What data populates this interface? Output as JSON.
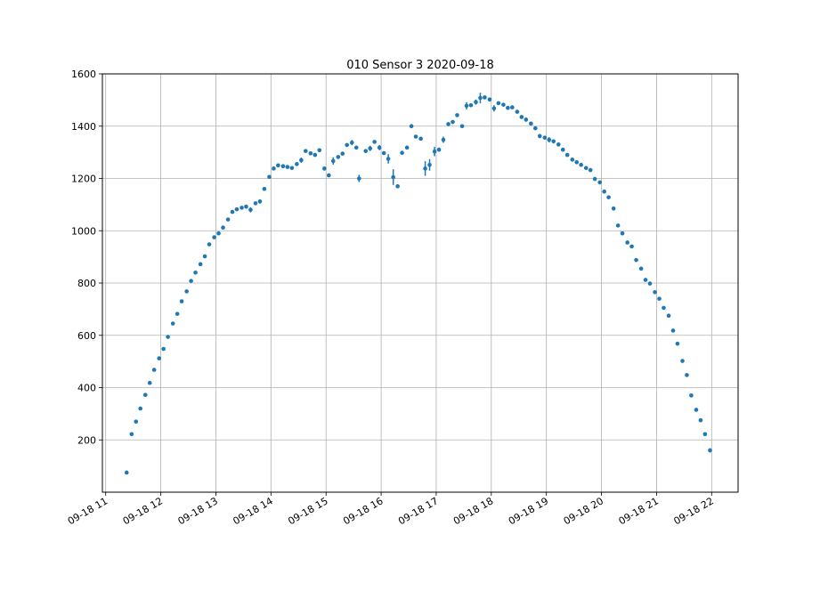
{
  "chart_data": {
    "type": "scatter",
    "title": "010 Sensor 3 2020-09-18",
    "xlabel": "",
    "ylabel": "",
    "x_unit": "hours (time of day, 2020-09-18)",
    "xlim": [
      10.94,
      22.48
    ],
    "ylim": [
      0,
      1600
    ],
    "grid": true,
    "color": "#1f77b4",
    "x_ticks": [
      {
        "value": 11,
        "label": "09-18 11"
      },
      {
        "value": 12,
        "label": "09-18 12"
      },
      {
        "value": 13,
        "label": "09-18 13"
      },
      {
        "value": 14,
        "label": "09-18 14"
      },
      {
        "value": 15,
        "label": "09-18 15"
      },
      {
        "value": 16,
        "label": "09-18 16"
      },
      {
        "value": 17,
        "label": "09-18 17"
      },
      {
        "value": 18,
        "label": "09-18 18"
      },
      {
        "value": 19,
        "label": "09-18 19"
      },
      {
        "value": 20,
        "label": "09-18 20"
      },
      {
        "value": 21,
        "label": "09-18 21"
      },
      {
        "value": 22,
        "label": "09-18 22"
      }
    ],
    "y_ticks": [
      {
        "value": 200,
        "label": "200"
      },
      {
        "value": 400,
        "label": "400"
      },
      {
        "value": 600,
        "label": "600"
      },
      {
        "value": 800,
        "label": "800"
      },
      {
        "value": 1000,
        "label": "1000"
      },
      {
        "value": 1200,
        "label": "1200"
      },
      {
        "value": 1400,
        "label": "1400"
      },
      {
        "value": 1600,
        "label": "1600"
      }
    ],
    "points": [
      [
        11.38,
        75,
        2
      ],
      [
        11.47,
        222,
        2
      ],
      [
        11.55,
        270,
        3
      ],
      [
        11.63,
        320,
        3
      ],
      [
        11.72,
        372,
        3
      ],
      [
        11.8,
        418,
        3
      ],
      [
        11.88,
        468,
        3
      ],
      [
        11.97,
        512,
        3
      ],
      [
        12.05,
        548,
        3
      ],
      [
        12.13,
        594,
        3
      ],
      [
        12.22,
        645,
        3
      ],
      [
        12.3,
        682,
        5
      ],
      [
        12.38,
        730,
        3
      ],
      [
        12.47,
        768,
        3
      ],
      [
        12.55,
        808,
        3
      ],
      [
        12.63,
        840,
        3
      ],
      [
        12.72,
        872,
        4
      ],
      [
        12.8,
        902,
        3
      ],
      [
        12.88,
        948,
        4
      ],
      [
        12.97,
        975,
        4
      ],
      [
        13.05,
        990,
        3
      ],
      [
        13.13,
        1012,
        3
      ],
      [
        13.22,
        1043,
        3
      ],
      [
        13.3,
        1072,
        4
      ],
      [
        13.38,
        1082,
        3
      ],
      [
        13.47,
        1088,
        3
      ],
      [
        13.55,
        1092,
        3
      ],
      [
        13.63,
        1080,
        10
      ],
      [
        13.72,
        1105,
        4
      ],
      [
        13.8,
        1112,
        8
      ],
      [
        13.88,
        1160,
        4
      ],
      [
        13.97,
        1206,
        6
      ],
      [
        14.05,
        1238,
        4
      ],
      [
        14.13,
        1250,
        5
      ],
      [
        14.22,
        1247,
        4
      ],
      [
        14.3,
        1244,
        3
      ],
      [
        14.38,
        1240,
        3
      ],
      [
        14.47,
        1255,
        6
      ],
      [
        14.55,
        1270,
        10
      ],
      [
        14.63,
        1305,
        4
      ],
      [
        14.72,
        1296,
        4
      ],
      [
        14.8,
        1290,
        4
      ],
      [
        14.88,
        1308,
        5
      ],
      [
        14.97,
        1238,
        8
      ],
      [
        15.05,
        1212,
        6
      ],
      [
        15.13,
        1267,
        14
      ],
      [
        15.22,
        1282,
        6
      ],
      [
        15.3,
        1295,
        6
      ],
      [
        15.38,
        1328,
        5
      ],
      [
        15.47,
        1337,
        10
      ],
      [
        15.55,
        1318,
        6
      ],
      [
        15.6,
        1200,
        14
      ],
      [
        15.72,
        1305,
        4
      ],
      [
        15.8,
        1315,
        10
      ],
      [
        15.88,
        1340,
        6
      ],
      [
        15.97,
        1318,
        10
      ],
      [
        16.05,
        1297,
        5
      ],
      [
        16.13,
        1275,
        18
      ],
      [
        16.22,
        1205,
        30
      ],
      [
        16.3,
        1170,
        4
      ],
      [
        16.38,
        1298,
        6
      ],
      [
        16.47,
        1318,
        6
      ],
      [
        16.55,
        1400,
        8
      ],
      [
        16.63,
        1360,
        4
      ],
      [
        16.72,
        1352,
        4
      ],
      [
        16.8,
        1238,
        28
      ],
      [
        16.88,
        1252,
        22
      ],
      [
        16.97,
        1303,
        18
      ],
      [
        17.05,
        1310,
        8
      ],
      [
        17.13,
        1348,
        12
      ],
      [
        17.22,
        1408,
        5
      ],
      [
        17.3,
        1416,
        4
      ],
      [
        17.38,
        1442,
        4
      ],
      [
        17.47,
        1400,
        6
      ],
      [
        17.55,
        1478,
        14
      ],
      [
        17.63,
        1480,
        6
      ],
      [
        17.72,
        1492,
        10
      ],
      [
        17.8,
        1508,
        20
      ],
      [
        17.88,
        1510,
        4
      ],
      [
        17.97,
        1502,
        8
      ],
      [
        18.05,
        1468,
        12
      ],
      [
        18.13,
        1488,
        6
      ],
      [
        18.22,
        1482,
        5
      ],
      [
        18.3,
        1470,
        5
      ],
      [
        18.38,
        1472,
        5
      ],
      [
        18.47,
        1455,
        4
      ],
      [
        18.55,
        1435,
        6
      ],
      [
        18.63,
        1425,
        8
      ],
      [
        18.72,
        1410,
        4
      ],
      [
        18.8,
        1392,
        4
      ],
      [
        18.88,
        1362,
        8
      ],
      [
        18.97,
        1356,
        6
      ],
      [
        19.05,
        1348,
        10
      ],
      [
        19.13,
        1342,
        8
      ],
      [
        19.22,
        1330,
        5
      ],
      [
        19.3,
        1310,
        4
      ],
      [
        19.38,
        1290,
        4
      ],
      [
        19.47,
        1272,
        4
      ],
      [
        19.55,
        1262,
        4
      ],
      [
        19.63,
        1252,
        6
      ],
      [
        19.72,
        1240,
        4
      ],
      [
        19.8,
        1232,
        4
      ],
      [
        19.88,
        1198,
        4
      ],
      [
        19.97,
        1185,
        4
      ],
      [
        20.05,
        1150,
        6
      ],
      [
        20.13,
        1128,
        4
      ],
      [
        20.22,
        1085,
        6
      ],
      [
        20.3,
        1020,
        4
      ],
      [
        20.38,
        990,
        4
      ],
      [
        20.47,
        955,
        4
      ],
      [
        20.55,
        940,
        4
      ],
      [
        20.63,
        888,
        6
      ],
      [
        20.72,
        855,
        4
      ],
      [
        20.8,
        812,
        4
      ],
      [
        20.88,
        798,
        4
      ],
      [
        20.97,
        765,
        4
      ],
      [
        21.05,
        740,
        4
      ],
      [
        21.13,
        705,
        4
      ],
      [
        21.22,
        675,
        4
      ],
      [
        21.3,
        618,
        6
      ],
      [
        21.38,
        568,
        4
      ],
      [
        21.47,
        502,
        4
      ],
      [
        21.55,
        448,
        4
      ],
      [
        21.63,
        370,
        4
      ],
      [
        21.72,
        315,
        4
      ],
      [
        21.8,
        275,
        4
      ],
      [
        21.88,
        222,
        4
      ],
      [
        21.97,
        160,
        8
      ]
    ]
  }
}
